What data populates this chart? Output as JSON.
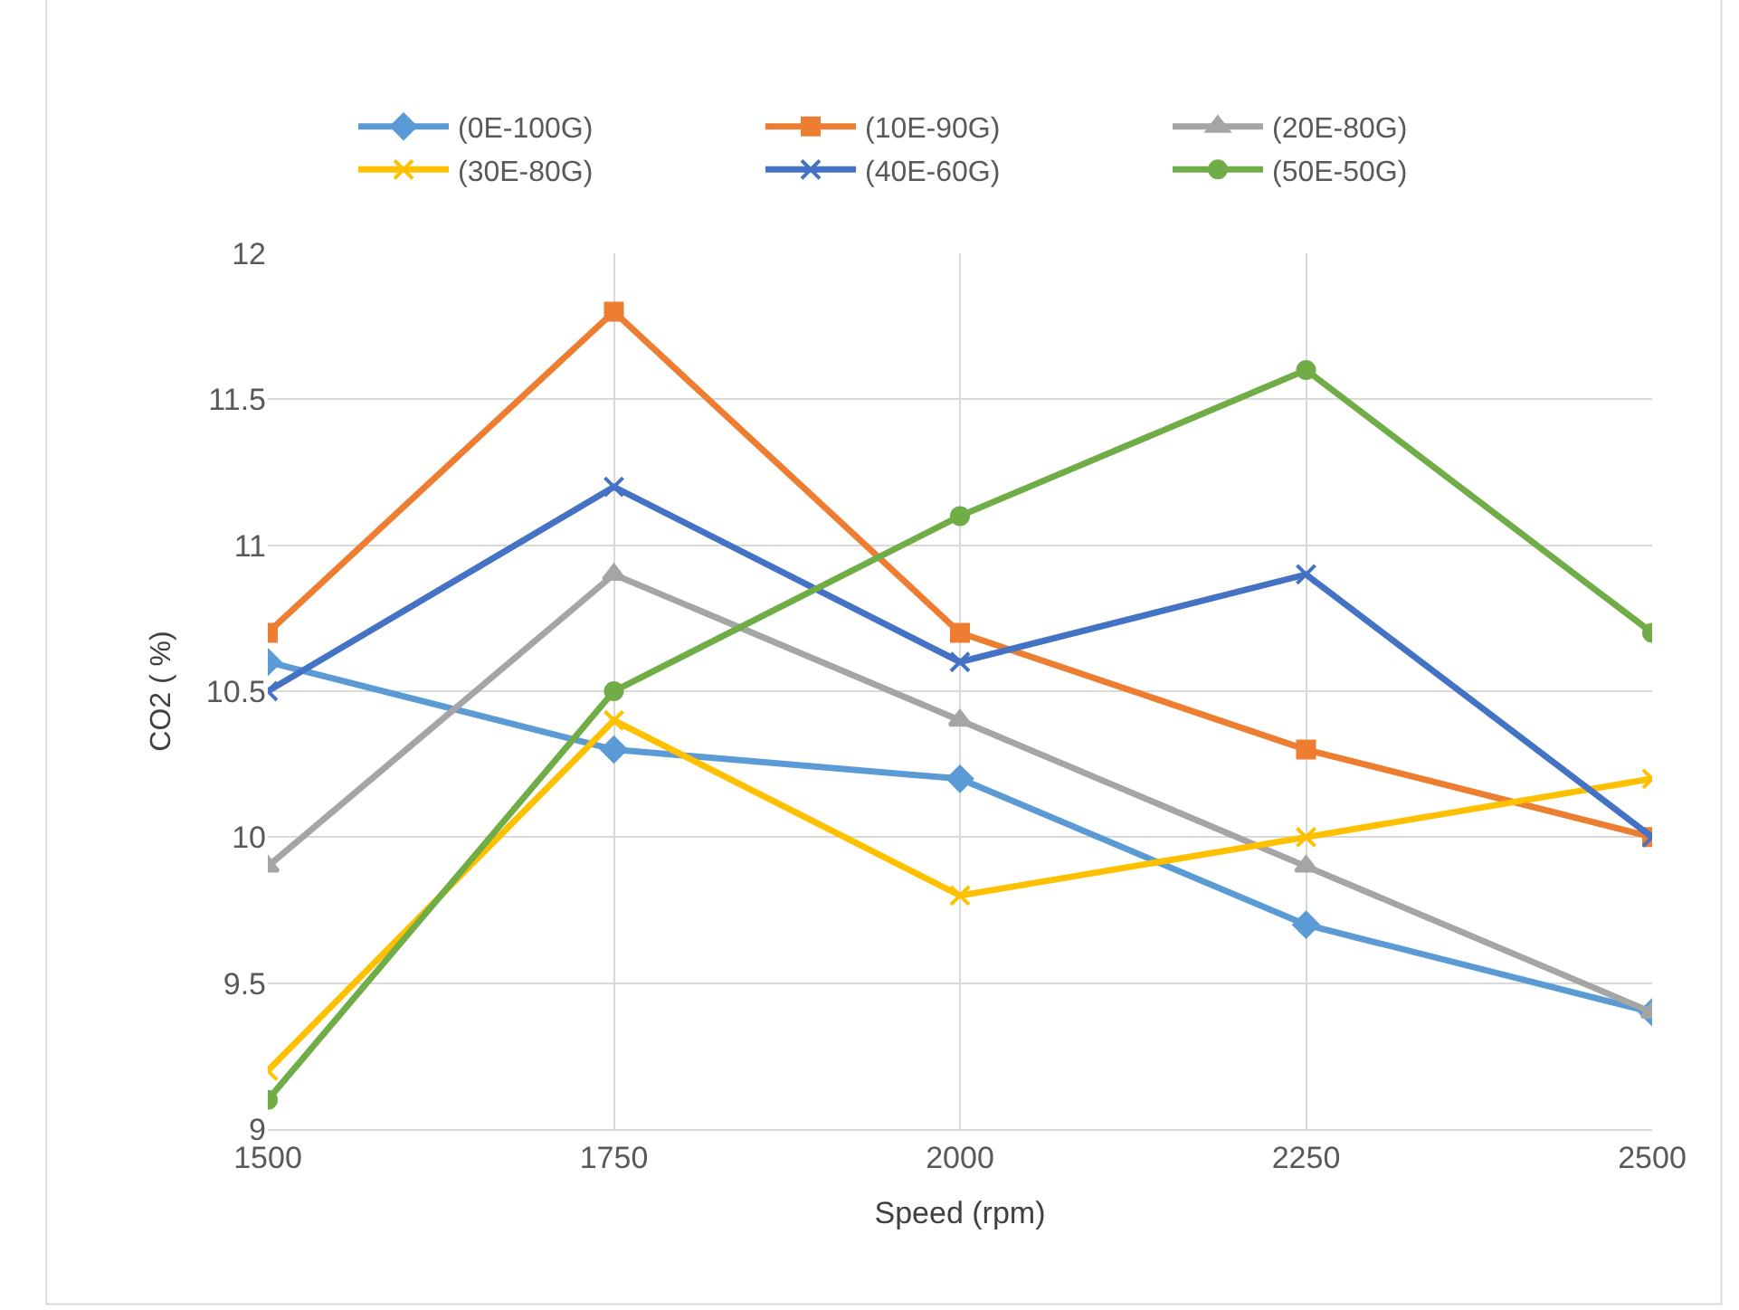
{
  "chart_data": {
    "type": "line",
    "xlabel": "Speed (rpm)",
    "ylabel": "CO2 ( %)",
    "x": [
      1500,
      1750,
      2000,
      2250,
      2500
    ],
    "xlim": [
      1500,
      2500
    ],
    "xticks": [
      1500,
      1750,
      2000,
      2250,
      2500
    ],
    "ylim": [
      9,
      12
    ],
    "yticks": [
      9,
      9.5,
      10,
      10.5,
      11,
      11.5,
      12
    ],
    "grid": true,
    "legend": "top",
    "line_style": "solid",
    "series": [
      {
        "name": "(0E-100G)",
        "color": "#5b9bd5",
        "marker": "diamond",
        "values": [
          10.6,
          10.3,
          10.2,
          9.7,
          9.4
        ]
      },
      {
        "name": "(10E-90G)",
        "color": "#ed7d31",
        "marker": "square",
        "values": [
          10.7,
          11.8,
          10.7,
          10.3,
          10.0
        ]
      },
      {
        "name": "(20E-80G)",
        "color": "#a5a5a5",
        "marker": "triangle",
        "values": [
          9.9,
          10.9,
          10.4,
          9.9,
          9.4
        ]
      },
      {
        "name": "(30E-80G)",
        "color": "#ffc000",
        "marker": "cross",
        "values": [
          9.2,
          10.4,
          9.8,
          10.0,
          10.2
        ]
      },
      {
        "name": "(40E-60G)",
        "color": "#4472c4",
        "marker": "cross",
        "values": [
          10.5,
          11.2,
          10.6,
          10.9,
          10.0
        ]
      },
      {
        "name": "(50E-50G)",
        "color": "#70ad47",
        "marker": "circle",
        "values": [
          9.1,
          10.5,
          11.1,
          11.6,
          10.7
        ]
      }
    ]
  }
}
